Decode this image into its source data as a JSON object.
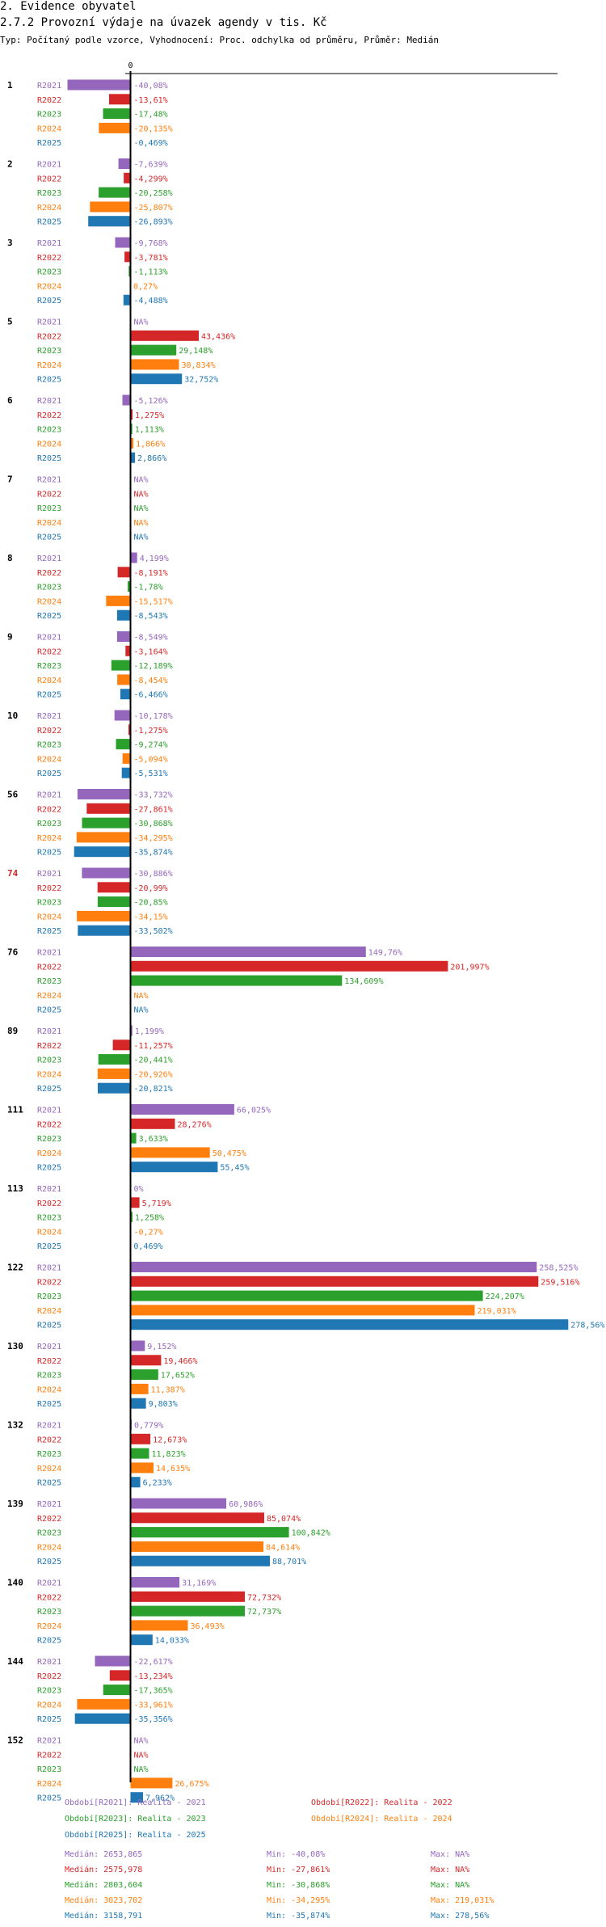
{
  "header": {
    "section": "2. Evidence obyvatel"
  },
  "colors": {
    "R2021": "#9467bd",
    "R2022": "#d62728",
    "R2023": "#2ca02c",
    "R2024": "#ff7f0e",
    "R2025": "#1f77b4",
    "highlight": "#d62728",
    "axis": "#000000"
  },
  "chart_data": {
    "type": "bar",
    "orientation": "horizontal",
    "title": "2.7.2 Provozní výdaje na úvazek agendy v tis. Kč",
    "subtitle": "Typ: Počítaný podle vzorce, Vyhodnocení: Proc. odchylka od průměru, Průměr: Medián",
    "zero_label": "0",
    "series_names": [
      "R2021",
      "R2022",
      "R2023",
      "R2024",
      "R2025"
    ],
    "groups": [
      {
        "category": "1",
        "highlight": false,
        "values": [
          -40.08,
          -13.61,
          -17.48,
          -20.135,
          -0.469
        ],
        "labels": [
          "-40,08%",
          "-13,61%",
          "-17,48%",
          "-20,135%",
          "-0,469%"
        ]
      },
      {
        "category": "2",
        "highlight": false,
        "values": [
          -7.639,
          -4.299,
          -20.258,
          -25.807,
          -26.893
        ],
        "labels": [
          "-7,639%",
          "-4,299%",
          "-20,258%",
          "-25,807%",
          "-26,893%"
        ]
      },
      {
        "category": "3",
        "highlight": false,
        "values": [
          -9.768,
          -3.781,
          -1.113,
          0.27,
          -4.488
        ],
        "labels": [
          "-9,768%",
          "-3,781%",
          "-1,113%",
          "0,27%",
          "-4,488%"
        ]
      },
      {
        "category": "5",
        "highlight": false,
        "values": [
          null,
          43.436,
          29.148,
          30.834,
          32.752
        ],
        "labels": [
          "NA%",
          "43,436%",
          "29,148%",
          "30,834%",
          "32,752%"
        ]
      },
      {
        "category": "6",
        "highlight": false,
        "values": [
          -5.126,
          1.275,
          1.113,
          1.866,
          2.866
        ],
        "labels": [
          "-5,126%",
          "1,275%",
          "1,113%",
          "1,866%",
          "2,866%"
        ]
      },
      {
        "category": "7",
        "highlight": false,
        "values": [
          null,
          null,
          null,
          null,
          null
        ],
        "labels": [
          "NA%",
          "NA%",
          "NA%",
          "NA%",
          "NA%"
        ]
      },
      {
        "category": "8",
        "highlight": false,
        "values": [
          4.199,
          -8.191,
          -1.78,
          -15.517,
          -8.543
        ],
        "labels": [
          "4,199%",
          "-8,191%",
          "-1,78%",
          "-15,517%",
          "-8,543%"
        ]
      },
      {
        "category": "9",
        "highlight": false,
        "values": [
          -8.549,
          -3.164,
          -12.189,
          -8.454,
          -6.466
        ],
        "labels": [
          "-8,549%",
          "-3,164%",
          "-12,189%",
          "-8,454%",
          "-6,466%"
        ]
      },
      {
        "category": "10",
        "highlight": false,
        "values": [
          -10.178,
          -1.275,
          -9.274,
          -5.094,
          -5.531
        ],
        "labels": [
          "-10,178%",
          "-1,275%",
          "-9,274%",
          "-5,094%",
          "-5,531%"
        ]
      },
      {
        "category": "56",
        "highlight": false,
        "values": [
          -33.732,
          -27.861,
          -30.868,
          -34.295,
          -35.874
        ],
        "labels": [
          "-33,732%",
          "-27,861%",
          "-30,868%",
          "-34,295%",
          "-35,874%"
        ]
      },
      {
        "category": "74",
        "highlight": true,
        "values": [
          -30.886,
          -20.99,
          -20.85,
          -34.15,
          -33.502
        ],
        "labels": [
          "-30,886%",
          "-20,99%",
          "-20,85%",
          "-34,15%",
          "-33,502%"
        ]
      },
      {
        "category": "76",
        "highlight": false,
        "values": [
          149.76,
          201.997,
          134.609,
          null,
          null
        ],
        "labels": [
          "149,76%",
          "201,997%",
          "134,609%",
          "NA%",
          "NA%"
        ]
      },
      {
        "category": "89",
        "highlight": false,
        "values": [
          1.199,
          -11.257,
          -20.441,
          -20.926,
          -20.821
        ],
        "labels": [
          "1,199%",
          "-11,257%",
          "-20,441%",
          "-20,926%",
          "-20,821%"
        ]
      },
      {
        "category": "111",
        "highlight": false,
        "values": [
          66.025,
          28.276,
          3.633,
          50.475,
          55.45
        ],
        "labels": [
          "66,025%",
          "28,276%",
          "3,633%",
          "50,475%",
          "55,45%"
        ]
      },
      {
        "category": "113",
        "highlight": false,
        "values": [
          0,
          5.719,
          1.258,
          -0.27,
          0.469
        ],
        "labels": [
          "0%",
          "5,719%",
          "1,258%",
          "-0,27%",
          "0,469%"
        ]
      },
      {
        "category": "122",
        "highlight": false,
        "values": [
          258.525,
          259.516,
          224.207,
          219.031,
          278.56
        ],
        "labels": [
          "258,525%",
          "259,516%",
          "224,207%",
          "219,031%",
          "278,56%"
        ]
      },
      {
        "category": "130",
        "highlight": false,
        "values": [
          9.152,
          19.466,
          17.652,
          11.387,
          9.803
        ],
        "labels": [
          "9,152%",
          "19,466%",
          "17,652%",
          "11,387%",
          "9,803%"
        ]
      },
      {
        "category": "132",
        "highlight": false,
        "values": [
          0.779,
          12.673,
          11.823,
          14.635,
          6.233
        ],
        "labels": [
          "0,779%",
          "12,673%",
          "11,823%",
          "14,635%",
          "6,233%"
        ]
      },
      {
        "category": "139",
        "highlight": false,
        "values": [
          60.986,
          85.074,
          100.842,
          84.614,
          88.701
        ],
        "labels": [
          "60,986%",
          "85,074%",
          "100,842%",
          "84,614%",
          "88,701%"
        ]
      },
      {
        "category": "140",
        "highlight": false,
        "values": [
          31.169,
          72.732,
          72.737,
          36.493,
          14.033
        ],
        "labels": [
          "31,169%",
          "72,732%",
          "72,737%",
          "36,493%",
          "14,033%"
        ]
      },
      {
        "category": "144",
        "highlight": false,
        "values": [
          -22.617,
          -13.234,
          -17.365,
          -33.961,
          -35.356
        ],
        "labels": [
          "-22,617%",
          "-13,234%",
          "-17,365%",
          "-33,961%",
          "-35,356%"
        ]
      },
      {
        "category": "152",
        "highlight": false,
        "values": [
          null,
          null,
          null,
          26.675,
          7.962
        ],
        "labels": [
          "NA%",
          "NA%",
          "NA%",
          "26,675%",
          "7,962%"
        ]
      }
    ],
    "legend": [
      {
        "series": "R2021",
        "text": "Období[R2021]: Realita - 2021"
      },
      {
        "series": "R2022",
        "text": "Období[R2022]: Realita - 2022"
      },
      {
        "series": "R2023",
        "text": "Období[R2023]: Realita - 2023"
      },
      {
        "series": "R2024",
        "text": "Období[R2024]: Realita - 2024"
      },
      {
        "series": "R2025",
        "text": "Období[R2025]: Realita - 2025"
      }
    ],
    "stats": [
      {
        "series": "R2021",
        "median": "Medián: 2653,865",
        "min": "Min: -40,08%",
        "max": "Max: NA%"
      },
      {
        "series": "R2022",
        "median": "Medián: 2575,978",
        "min": "Min: -27,861%",
        "max": "Max: NA%"
      },
      {
        "series": "R2023",
        "median": "Medián: 2803,604",
        "min": "Min: -30,868%",
        "max": "Max: NA%"
      },
      {
        "series": "R2024",
        "median": "Medián: 3023,702",
        "min": "Min: -34,295%",
        "max": "Max: 219,031%"
      },
      {
        "series": "R2025",
        "median": "Medián: 3158,791",
        "min": "Min: -35,874%",
        "max": "Max: 278,56%"
      }
    ]
  }
}
